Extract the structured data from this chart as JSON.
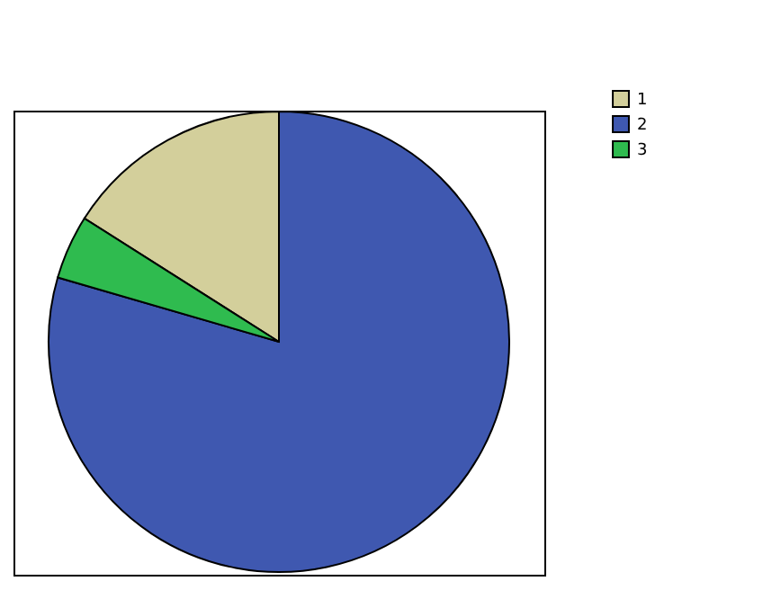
{
  "chart_data": {
    "type": "pie",
    "categories": [
      "1",
      "2",
      "3"
    ],
    "values": [
      16,
      79.5,
      4.5
    ],
    "colors": [
      "#d3cf9b",
      "#3f58b0",
      "#2fbb4f"
    ],
    "legend": "top right"
  }
}
